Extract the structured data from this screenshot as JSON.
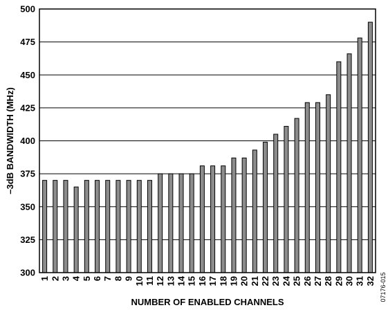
{
  "chart_data": {
    "type": "bar",
    "title": "",
    "xlabel": "NUMBER OF ENABLED CHANNELS",
    "ylabel": "–3dB BANDWIDTH (MHz)",
    "ylim": [
      300,
      500
    ],
    "yticks": [
      300,
      325,
      350,
      375,
      400,
      425,
      450,
      475,
      500
    ],
    "grid": true,
    "legend": "none",
    "categories": [
      "1",
      "2",
      "3",
      "4",
      "5",
      "6",
      "7",
      "8",
      "9",
      "10",
      "11",
      "12",
      "13",
      "14",
      "15",
      "16",
      "17",
      "18",
      "19",
      "20",
      "21",
      "22",
      "23",
      "24",
      "25",
      "26",
      "27",
      "28",
      "29",
      "30",
      "31",
      "32"
    ],
    "values": [
      370,
      370,
      370,
      365,
      370,
      370,
      370,
      370,
      370,
      370,
      370,
      375,
      375,
      375,
      375,
      381,
      381,
      381,
      387,
      387,
      393,
      399,
      405,
      411,
      417,
      429,
      429,
      435,
      460,
      466,
      478,
      490
    ],
    "bar_color": "#8c8c8c",
    "bar_stroke": "#000000"
  },
  "figure_code": "07176-015"
}
